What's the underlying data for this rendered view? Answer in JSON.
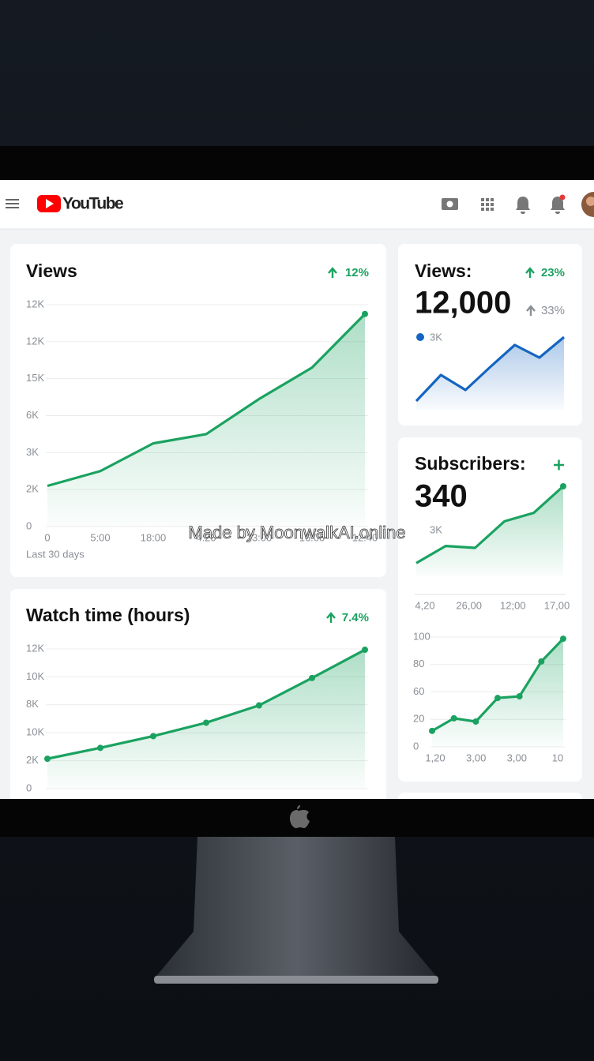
{
  "header": {
    "brand": "YouTube"
  },
  "watermark": "Made by MoonwalkAI.online",
  "views_card": {
    "title": "Views",
    "change": "12%",
    "footer": "Last 30 days",
    "chart": {
      "type": "line",
      "color": "#1aa260",
      "ylim": [
        0,
        6
      ],
      "yticks": [
        0,
        {
          "value": 1,
          "label": "2K"
        },
        {
          "value": 2,
          "label": "3K"
        },
        {
          "value": 3,
          "label": "6K"
        },
        {
          "value": 4,
          "label": "15K"
        },
        {
          "value": 5,
          "label": "12K"
        },
        {
          "value": 6,
          "label": "12K"
        }
      ],
      "xlabels": [
        "0",
        "5:00",
        "18:00",
        "4:20",
        "23:00",
        "16:00",
        "12:40"
      ],
      "values": [
        1.1,
        1.5,
        2.25,
        2.5,
        3.45,
        4.3,
        5.75
      ]
    }
  },
  "watch_card": {
    "title": "Watch time (hours)",
    "change": "7.4%",
    "chart": {
      "type": "line",
      "color": "#1aa260",
      "ylim": [
        0,
        5
      ],
      "yticks": [
        0,
        {
          "value": 1,
          "label": "2K"
        },
        {
          "value": 2,
          "label": "10K"
        },
        {
          "value": 3,
          "label": "8K"
        },
        {
          "value": 4,
          "label": "10K"
        },
        {
          "value": 5,
          "label": "12K"
        }
      ],
      "values": [
        1.07,
        1.46,
        1.88,
        2.36,
        2.98,
        3.96,
        4.97
      ]
    }
  },
  "side_views_card": {
    "title": "Views:",
    "change": "23%",
    "total": "12,000",
    "secondary": "33%",
    "legend": "3K",
    "chart": {
      "type": "line",
      "color": "#1565c0",
      "ylim": [
        0,
        100
      ],
      "values": [
        12,
        45,
        26,
        55,
        83,
        67,
        93
      ]
    }
  },
  "subscribers_card": {
    "title": "Subscribers:",
    "total": "340",
    "legend": "3K",
    "chart": {
      "type": "line",
      "color": "#1aa260",
      "ylim": [
        0,
        100
      ],
      "values": [
        14,
        32,
        30,
        58,
        67,
        95
      ],
      "xlabels": [
        "4,20",
        "26,00",
        "12;00",
        "17,00"
      ]
    },
    "chart2": {
      "type": "line",
      "color": "#1aa260",
      "ylim": [
        0,
        4
      ],
      "yticks": [
        0,
        {
          "value": 1,
          "label": "20"
        },
        {
          "value": 2,
          "label": "60"
        },
        {
          "value": 3,
          "label": "80"
        },
        {
          "value": 4,
          "label": "100"
        }
      ],
      "xlabels": [
        "1,20",
        "3,00",
        "3,00",
        "10"
      ],
      "values": [
        0.58,
        1.04,
        0.92,
        1.78,
        1.84,
        3.11,
        3.94
      ]
    }
  }
}
